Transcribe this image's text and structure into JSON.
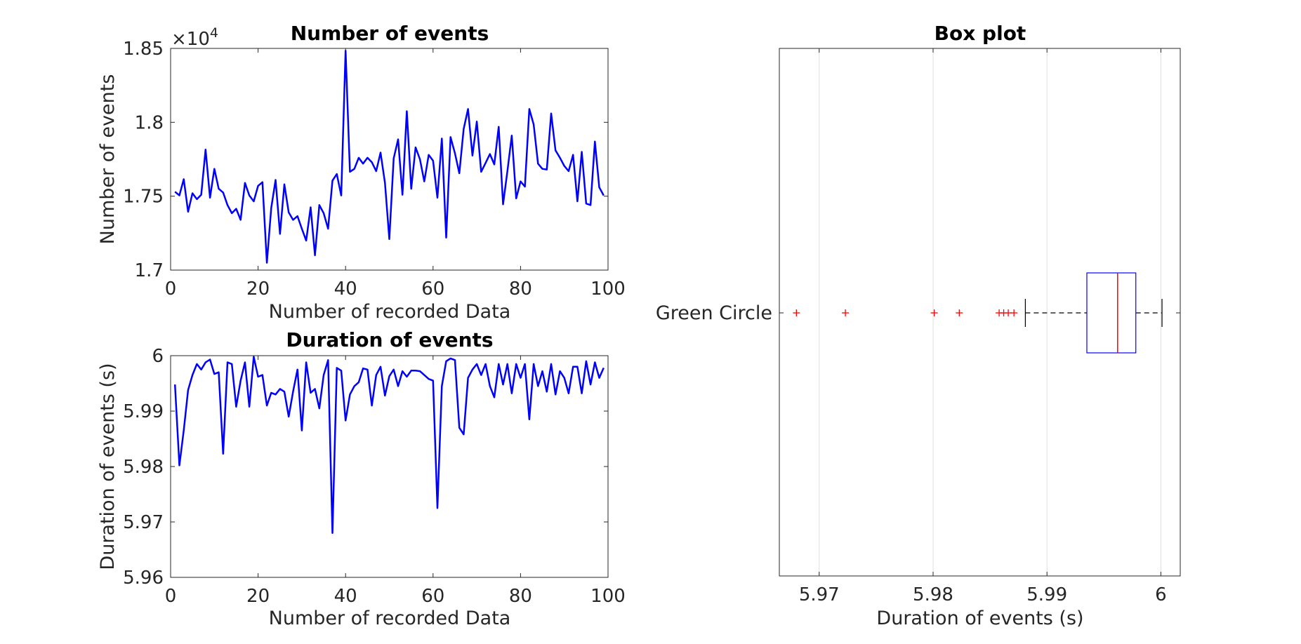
{
  "chart_data": [
    {
      "type": "line",
      "title": "Number of events",
      "xlabel": "Number of recorded Data",
      "ylabel": "Number of events",
      "xlim": [
        0,
        100
      ],
      "ylim": [
        17000,
        18500
      ],
      "x_ticks": [
        "0",
        "20",
        "40",
        "60",
        "80",
        "100"
      ],
      "y_ticks": [
        "1.7",
        "1.75",
        "1.8",
        "1.85"
      ],
      "y_exponent_label": "×10",
      "y_exponent_power": "4",
      "line_color": "#0000ff",
      "grid": false,
      "series": [
        {
          "x": [
            1,
            2,
            3,
            4,
            5,
            6,
            7,
            8,
            9,
            10,
            11,
            12,
            13,
            14,
            15,
            16,
            17,
            18,
            19,
            20,
            21,
            22,
            23,
            24,
            25,
            26,
            27,
            28,
            29,
            30,
            31,
            32,
            33,
            34,
            35,
            36,
            37,
            38,
            39,
            40,
            41,
            42,
            43,
            44,
            45,
            46,
            47,
            48,
            49,
            50,
            51,
            52,
            53,
            54,
            55,
            56,
            57,
            58,
            59,
            60,
            61,
            62,
            63,
            64,
            65,
            66,
            67,
            68,
            69,
            70,
            71,
            72,
            73,
            74,
            75,
            76,
            77,
            78,
            79,
            80,
            81,
            82,
            83,
            84,
            85,
            86,
            87,
            88,
            89,
            90,
            91,
            92,
            93,
            94,
            95,
            96,
            97,
            98,
            99
          ],
          "values": [
            17530,
            17505,
            17615,
            17395,
            17520,
            17480,
            17510,
            17815,
            17490,
            17685,
            17550,
            17525,
            17440,
            17385,
            17415,
            17340,
            17590,
            17505,
            17465,
            17570,
            17595,
            17050,
            17420,
            17610,
            17245,
            17580,
            17390,
            17340,
            17365,
            17280,
            17200,
            17425,
            17100,
            17440,
            17385,
            17280,
            17605,
            17650,
            17505,
            18485,
            17665,
            17685,
            17760,
            17720,
            17760,
            17730,
            17670,
            17795,
            17590,
            17210,
            17755,
            17885,
            17510,
            18075,
            17550,
            17830,
            17750,
            17600,
            17780,
            17740,
            17490,
            17890,
            17220,
            17900,
            17790,
            17655,
            17955,
            18090,
            17775,
            18005,
            17665,
            17725,
            17785,
            17715,
            17970,
            17445,
            17670,
            17910,
            17485,
            17600,
            17565,
            18090,
            17985,
            17720,
            17685,
            17680,
            18060,
            17810,
            17760,
            17705,
            17670,
            17780,
            17465,
            17800,
            17450,
            17440,
            17870,
            17560,
            17505
          ]
        }
      ]
    },
    {
      "type": "line",
      "title": "Duration of events",
      "xlabel": "Number of recorded Data",
      "ylabel": "Duration of events (s)",
      "xlim": [
        0,
        100
      ],
      "ylim": [
        5.96,
        6.0
      ],
      "x_ticks": [
        "0",
        "20",
        "40",
        "60",
        "80",
        "100"
      ],
      "y_ticks": [
        "5.96",
        "5.97",
        "5.98",
        "5.99",
        "6"
      ],
      "line_color": "#0000ff",
      "grid": false,
      "series": [
        {
          "x": [
            1,
            2,
            3,
            4,
            5,
            6,
            7,
            8,
            9,
            10,
            11,
            12,
            13,
            14,
            15,
            16,
            17,
            18,
            19,
            20,
            21,
            22,
            23,
            24,
            25,
            26,
            27,
            28,
            29,
            30,
            31,
            32,
            33,
            34,
            35,
            36,
            37,
            38,
            39,
            40,
            41,
            42,
            43,
            44,
            45,
            46,
            47,
            48,
            49,
            50,
            51,
            52,
            53,
            54,
            55,
            56,
            57,
            58,
            59,
            60,
            61,
            62,
            63,
            64,
            65,
            66,
            67,
            68,
            69,
            70,
            71,
            72,
            73,
            74,
            75,
            76,
            77,
            78,
            79,
            80,
            81,
            82,
            83,
            84,
            85,
            86,
            87,
            88,
            89,
            90,
            91,
            92,
            93,
            94,
            95,
            96,
            97,
            98,
            99
          ],
          "values": [
            5.9948,
            5.9802,
            5.9865,
            5.9938,
            5.9965,
            5.9985,
            5.9975,
            5.9988,
            5.9993,
            5.9967,
            5.997,
            5.9823,
            5.9988,
            5.9985,
            5.9908,
            5.9955,
            5.9988,
            5.9908,
            5.9998,
            5.9962,
            5.9965,
            5.991,
            5.9933,
            5.993,
            5.994,
            5.9935,
            5.989,
            5.9935,
            5.9975,
            5.9865,
            5.9988,
            5.9933,
            5.994,
            5.9905,
            5.9965,
            5.9992,
            5.968,
            5.9978,
            5.9973,
            5.9883,
            5.993,
            5.9945,
            5.9952,
            5.9977,
            5.9975,
            5.991,
            5.9965,
            5.998,
            5.9928,
            5.9963,
            5.9975,
            5.9945,
            5.9972,
            5.9962,
            5.9973,
            5.9973,
            5.9972,
            5.9965,
            5.9958,
            5.9955,
            5.9725,
            5.9945,
            5.999,
            5.9995,
            5.9992,
            5.987,
            5.9858,
            5.996,
            5.9975,
            5.9985,
            5.9965,
            5.9985,
            5.9945,
            5.9925,
            5.9985,
            5.9948,
            5.9985,
            5.9932,
            5.9985,
            5.996,
            5.9985,
            5.9885,
            5.9985,
            5.9945,
            5.9972,
            5.9935,
            5.9985,
            5.993,
            5.9972,
            5.996,
            5.9932,
            5.998,
            5.998,
            5.9932,
            5.999,
            5.9948,
            5.9988,
            5.996,
            5.9978
          ]
        }
      ]
    },
    {
      "type": "box",
      "title": "Box plot",
      "xlabel": "Duration of events (s)",
      "ylabel": "",
      "xlim": [
        5.9665,
        6.0017
      ],
      "x_ticks": [
        "5.97",
        "5.98",
        "5.99",
        "6"
      ],
      "categories": [
        "Green Circle"
      ],
      "grid": true,
      "box": {
        "q1": 5.9935,
        "median": 5.9962,
        "q3": 5.9978,
        "whisker_low": 5.9881,
        "whisker_high": 6.0001,
        "outliers": [
          5.968,
          5.9723,
          5.9801,
          5.9823,
          5.9858,
          5.9862,
          5.9866,
          5.9871
        ]
      },
      "box_color": "#0000ff",
      "median_color": "#ff0000",
      "outlier_color": "#ff0000",
      "whisker_color": "#000000"
    }
  ]
}
